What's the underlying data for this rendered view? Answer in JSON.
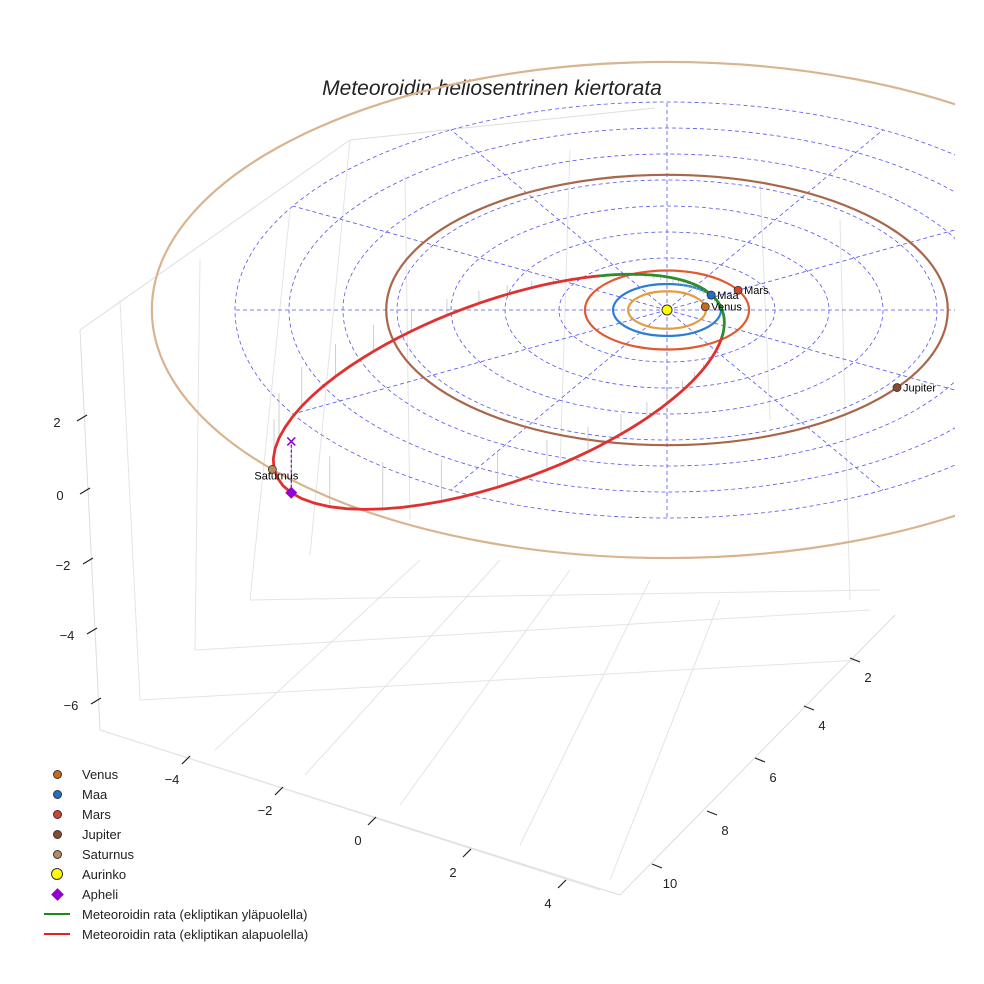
{
  "chart_data": {
    "type": "3d-line",
    "title": "Meteoroidin heliosentrinen kiertorata",
    "x_ticks": [
      "−4",
      "−2",
      "0",
      "2",
      "4"
    ],
    "y_ticks": [
      "2",
      "4",
      "6",
      "8",
      "10"
    ],
    "z_ticks": [
      "2",
      "0",
      "−2",
      "−4",
      "−6"
    ],
    "orbit_radii_au": [
      0.72,
      1.0,
      1.52,
      5.2,
      9.54
    ],
    "ecliptic_grid_circles_au": [
      1,
      2,
      3,
      4,
      5,
      6,
      7,
      8
    ],
    "ecliptic_grid_spokes": 12,
    "planets": [
      {
        "name": "Venus",
        "label": "Venus",
        "angle_deg": 10,
        "color": "#c96a1b"
      },
      {
        "name": "Maa",
        "label": "Maa",
        "angle_deg": 35,
        "color": "#1f6fc5"
      },
      {
        "name": "Mars",
        "label": "Mars",
        "angle_deg": 30,
        "color": "#d2452b"
      },
      {
        "name": "Jupiter",
        "label": "Jupiter",
        "angle_deg": -35,
        "color": "#8b4a2f"
      },
      {
        "name": "Saturnus",
        "label": "Saturnus",
        "angle_deg": 220,
        "color": "#b88a5e"
      }
    ],
    "orbit_colors": {
      "Venus": "#e0a040",
      "Maa": "#2a7fd4",
      "Mars": "#e05a30",
      "Jupiter": "#a8664a",
      "Saturnus": "#d9b48f"
    },
    "meteoroid": {
      "perihelion_au": 0.9,
      "aphelion_au": 8.6,
      "aphelion_angle_deg": 216,
      "inclination_deg": 20,
      "node_angle_deg": 132,
      "above_color": "#2e8b2e",
      "below_color": "#e03030"
    },
    "legend": [
      {
        "label": "Venus",
        "symbol": "dot",
        "color": "#c96a1b"
      },
      {
        "label": "Maa",
        "symbol": "dot",
        "color": "#1f6fc5"
      },
      {
        "label": "Mars",
        "symbol": "dot",
        "color": "#d2452b"
      },
      {
        "label": "Jupiter",
        "symbol": "dot",
        "color": "#8b4a2f"
      },
      {
        "label": "Saturnus",
        "symbol": "dot",
        "color": "#b88a5e"
      },
      {
        "label": "Aurinko",
        "symbol": "sun",
        "color": "#ffff00"
      },
      {
        "label": "Apheli",
        "symbol": "diamond",
        "color": "#9400d3"
      },
      {
        "label": "Meteoroidin rata (ekliptikan yläpuolella)",
        "symbol": "line",
        "color": "#1a8a1a"
      },
      {
        "label": "Meteoroidin rata (ekliptikan alapuolella)",
        "symbol": "line",
        "color": "#e62020"
      }
    ]
  }
}
